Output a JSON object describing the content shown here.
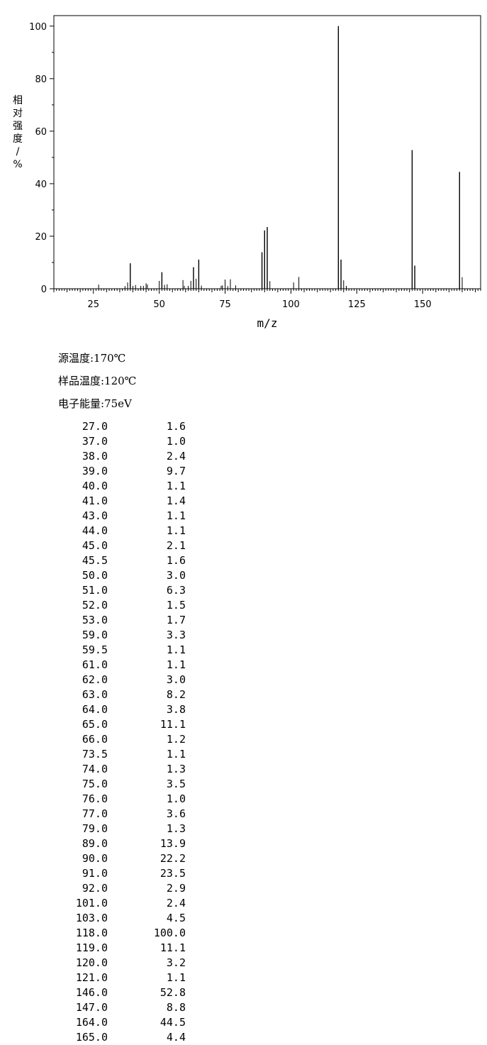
{
  "chart_data": {
    "type": "bar",
    "title": "",
    "xlabel": "m/z",
    "ylabel": "相对强度/%",
    "xlim": [
      10,
      172
    ],
    "ylim": [
      0,
      104
    ],
    "xticks": [
      25,
      50,
      75,
      100,
      125,
      150
    ],
    "yticks": [
      0,
      20,
      40,
      60,
      80,
      100
    ],
    "grid": false,
    "peaks": [
      {
        "mz": 27.0,
        "intensity": 1.6
      },
      {
        "mz": 37.0,
        "intensity": 1.0
      },
      {
        "mz": 38.0,
        "intensity": 2.4
      },
      {
        "mz": 39.0,
        "intensity": 9.7
      },
      {
        "mz": 40.0,
        "intensity": 1.1
      },
      {
        "mz": 41.0,
        "intensity": 1.4
      },
      {
        "mz": 43.0,
        "intensity": 1.1
      },
      {
        "mz": 44.0,
        "intensity": 1.1
      },
      {
        "mz": 45.0,
        "intensity": 2.1
      },
      {
        "mz": 45.5,
        "intensity": 1.6
      },
      {
        "mz": 50.0,
        "intensity": 3.0
      },
      {
        "mz": 51.0,
        "intensity": 6.3
      },
      {
        "mz": 52.0,
        "intensity": 1.5
      },
      {
        "mz": 53.0,
        "intensity": 1.7
      },
      {
        "mz": 59.0,
        "intensity": 3.3
      },
      {
        "mz": 59.5,
        "intensity": 1.1
      },
      {
        "mz": 61.0,
        "intensity": 1.1
      },
      {
        "mz": 62.0,
        "intensity": 3.0
      },
      {
        "mz": 63.0,
        "intensity": 8.2
      },
      {
        "mz": 64.0,
        "intensity": 3.8
      },
      {
        "mz": 65.0,
        "intensity": 11.1
      },
      {
        "mz": 66.0,
        "intensity": 1.2
      },
      {
        "mz": 73.5,
        "intensity": 1.1
      },
      {
        "mz": 74.0,
        "intensity": 1.3
      },
      {
        "mz": 75.0,
        "intensity": 3.5
      },
      {
        "mz": 76.0,
        "intensity": 1.0
      },
      {
        "mz": 77.0,
        "intensity": 3.6
      },
      {
        "mz": 79.0,
        "intensity": 1.3
      },
      {
        "mz": 89.0,
        "intensity": 13.9
      },
      {
        "mz": 90.0,
        "intensity": 22.2
      },
      {
        "mz": 91.0,
        "intensity": 23.5
      },
      {
        "mz": 92.0,
        "intensity": 2.9
      },
      {
        "mz": 101.0,
        "intensity": 2.4
      },
      {
        "mz": 103.0,
        "intensity": 4.5
      },
      {
        "mz": 118.0,
        "intensity": 100.0
      },
      {
        "mz": 119.0,
        "intensity": 11.1
      },
      {
        "mz": 120.0,
        "intensity": 3.2
      },
      {
        "mz": 121.0,
        "intensity": 1.1
      },
      {
        "mz": 146.0,
        "intensity": 52.8
      },
      {
        "mz": 147.0,
        "intensity": 8.8
      },
      {
        "mz": 164.0,
        "intensity": 44.5
      },
      {
        "mz": 165.0,
        "intensity": 4.4
      }
    ]
  },
  "conditions": [
    {
      "text": "源温度:170℃"
    },
    {
      "text": "样品温度:120℃"
    },
    {
      "text": "电子能量:75eV"
    }
  ],
  "peak_table": [
    {
      "mz": "27.0",
      "intensity": "1.6"
    },
    {
      "mz": "37.0",
      "intensity": "1.0"
    },
    {
      "mz": "38.0",
      "intensity": "2.4"
    },
    {
      "mz": "39.0",
      "intensity": "9.7"
    },
    {
      "mz": "40.0",
      "intensity": "1.1"
    },
    {
      "mz": "41.0",
      "intensity": "1.4"
    },
    {
      "mz": "43.0",
      "intensity": "1.1"
    },
    {
      "mz": "44.0",
      "intensity": "1.1"
    },
    {
      "mz": "45.0",
      "intensity": "2.1"
    },
    {
      "mz": "45.5",
      "intensity": "1.6"
    },
    {
      "mz": "50.0",
      "intensity": "3.0"
    },
    {
      "mz": "51.0",
      "intensity": "6.3"
    },
    {
      "mz": "52.0",
      "intensity": "1.5"
    },
    {
      "mz": "53.0",
      "intensity": "1.7"
    },
    {
      "mz": "59.0",
      "intensity": "3.3"
    },
    {
      "mz": "59.5",
      "intensity": "1.1"
    },
    {
      "mz": "61.0",
      "intensity": "1.1"
    },
    {
      "mz": "62.0",
      "intensity": "3.0"
    },
    {
      "mz": "63.0",
      "intensity": "8.2"
    },
    {
      "mz": "64.0",
      "intensity": "3.8"
    },
    {
      "mz": "65.0",
      "intensity": "11.1"
    },
    {
      "mz": "66.0",
      "intensity": "1.2"
    },
    {
      "mz": "73.5",
      "intensity": "1.1"
    },
    {
      "mz": "74.0",
      "intensity": "1.3"
    },
    {
      "mz": "75.0",
      "intensity": "3.5"
    },
    {
      "mz": "76.0",
      "intensity": "1.0"
    },
    {
      "mz": "77.0",
      "intensity": "3.6"
    },
    {
      "mz": "79.0",
      "intensity": "1.3"
    },
    {
      "mz": "89.0",
      "intensity": "13.9"
    },
    {
      "mz": "90.0",
      "intensity": "22.2"
    },
    {
      "mz": "91.0",
      "intensity": "23.5"
    },
    {
      "mz": "92.0",
      "intensity": "2.9"
    },
    {
      "mz": "101.0",
      "intensity": "2.4"
    },
    {
      "mz": "103.0",
      "intensity": "4.5"
    },
    {
      "mz": "118.0",
      "intensity": "100.0"
    },
    {
      "mz": "119.0",
      "intensity": "11.1"
    },
    {
      "mz": "120.0",
      "intensity": "3.2"
    },
    {
      "mz": "121.0",
      "intensity": "1.1"
    },
    {
      "mz": "146.0",
      "intensity": "52.8"
    },
    {
      "mz": "147.0",
      "intensity": "8.8"
    },
    {
      "mz": "164.0",
      "intensity": "44.5"
    },
    {
      "mz": "165.0",
      "intensity": "4.4"
    }
  ]
}
